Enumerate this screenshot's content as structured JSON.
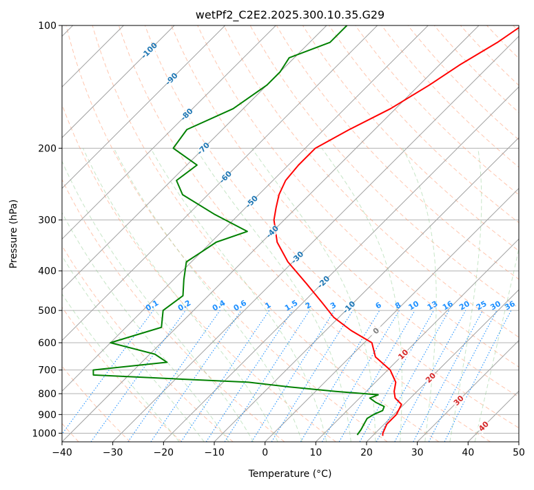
{
  "chart_data": {
    "type": "line",
    "chart_kind": "Skew-T log-P diagram",
    "title": "wetPf2_C2E2.2025.300.10.35.G29",
    "xlabel": "Temperature (°C)",
    "ylabel": "Pressure (hPa)",
    "xlim": [
      -40,
      50
    ],
    "ylim": [
      1050,
      100
    ],
    "y_scale": "log",
    "x_ticks": [
      -40,
      -30,
      -20,
      -10,
      0,
      10,
      20,
      30,
      40,
      50
    ],
    "y_ticks": [
      100,
      200,
      300,
      400,
      500,
      600,
      700,
      800,
      900,
      1000
    ],
    "grid": true,
    "colors": {
      "temperature": "#ff0000",
      "dewpoint": "#008000",
      "isotherm": "#a0a0a0",
      "dry_adiabat": "#ffa07a",
      "moist_adiabat": "#98d098",
      "mixing_ratio": "#1e90ff",
      "isotherm_label": "#1f77b4",
      "dry_adiabat_label": "#d62728",
      "zero_label": "#808080",
      "surface_arc": "#d2b48c"
    },
    "isotherm_labels": [
      "-100",
      "-90",
      "-80",
      "-70",
      "-60",
      "-50",
      "-40",
      "-30",
      "-20",
      "-10",
      "0",
      "10",
      "20",
      "30",
      "40"
    ],
    "isotherm_label_values": [
      -100,
      -90,
      -80,
      -70,
      -60,
      -50,
      -40,
      -30,
      -20,
      -10,
      0,
      10,
      20,
      30,
      40
    ],
    "mixing_ratio_labels": [
      "0.1",
      "0.2",
      "0.4",
      "0.6",
      "1",
      "1.5",
      "2",
      "3",
      "4",
      "6",
      "8",
      "10",
      "13",
      "16",
      "20",
      "25",
      "30",
      "36"
    ],
    "series": [
      {
        "key": "temperature",
        "points": [
          [
            -31.5,
            100
          ],
          [
            -33,
            110
          ],
          [
            -36,
            125
          ],
          [
            -38,
            140
          ],
          [
            -41,
            160
          ],
          [
            -45,
            180
          ],
          [
            -48,
            200
          ],
          [
            -48,
            220
          ],
          [
            -47.5,
            240
          ],
          [
            -46,
            260
          ],
          [
            -44,
            280
          ],
          [
            -42,
            300
          ],
          [
            -37,
            340
          ],
          [
            -31,
            380
          ],
          [
            -23,
            430
          ],
          [
            -16,
            480
          ],
          [
            -11,
            520
          ],
          [
            -5,
            560
          ],
          [
            1.5,
            600
          ],
          [
            5,
            650
          ],
          [
            10.5,
            700
          ],
          [
            14,
            750
          ],
          [
            15.5,
            790
          ],
          [
            17,
            820
          ],
          [
            19.5,
            850
          ],
          [
            20.5,
            900
          ],
          [
            20.5,
            950
          ],
          [
            21.5,
            1000
          ],
          [
            22,
            1015
          ]
        ]
      },
      {
        "key": "dewpoint",
        "points": [
          [
            -66,
            100
          ],
          [
            -66,
            110
          ],
          [
            -71,
            120
          ],
          [
            -70,
            130
          ],
          [
            -70,
            140
          ],
          [
            -72,
            160
          ],
          [
            -77,
            180
          ],
          [
            -76,
            200
          ],
          [
            -68,
            220
          ],
          [
            -69,
            240
          ],
          [
            -65,
            260
          ],
          [
            -55,
            290
          ],
          [
            -45,
            320
          ],
          [
            -49,
            340
          ],
          [
            -50,
            360
          ],
          [
            -51,
            380
          ],
          [
            -48,
            420
          ],
          [
            -45,
            460
          ],
          [
            -46,
            500
          ],
          [
            -43,
            550
          ],
          [
            -50,
            600
          ],
          [
            -39,
            640
          ],
          [
            -35,
            670
          ],
          [
            -48,
            700
          ],
          [
            -47,
            720
          ],
          [
            -15,
            750
          ],
          [
            -6,
            770
          ],
          [
            4,
            790
          ],
          [
            13,
            805
          ],
          [
            12,
            820
          ],
          [
            14,
            840
          ],
          [
            16.5,
            860
          ],
          [
            17,
            880
          ],
          [
            16,
            900
          ],
          [
            15.5,
            920
          ],
          [
            16,
            950
          ],
          [
            16.5,
            980
          ],
          [
            16.8,
            1010
          ]
        ]
      }
    ]
  }
}
